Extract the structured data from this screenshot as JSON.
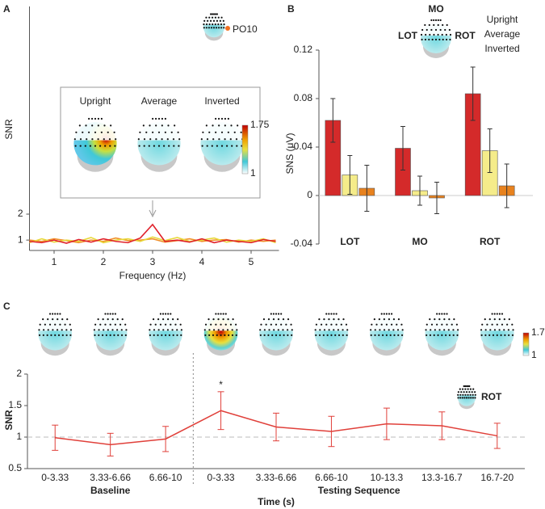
{
  "chart_data": [
    {
      "type": "line",
      "panel": "A",
      "y_label": "SNR",
      "x_label": "Frequency (Hz)",
      "electrode": "PO10",
      "x": [
        0.5,
        0.75,
        1,
        1.25,
        1.5,
        1.75,
        2,
        2.25,
        2.5,
        2.75,
        3,
        3.25,
        3.5,
        3.75,
        4,
        4.25,
        4.5,
        4.75,
        5,
        5.25,
        5.5
      ],
      "series": [
        {
          "name": "Upright",
          "color": "#e0202a",
          "values": [
            0.95,
            0.9,
            1.0,
            0.88,
            1.02,
            0.92,
            1.05,
            0.95,
            0.9,
            1.08,
            1.6,
            0.95,
            1.0,
            0.92,
            1.05,
            0.9,
            1.0,
            0.95,
            0.9,
            1.02,
            0.95
          ]
        },
        {
          "name": "Average",
          "color": "#e8d83a",
          "values": [
            0.9,
            1.05,
            0.92,
            1.0,
            0.95,
            1.1,
            0.9,
            1.0,
            1.05,
            0.95,
            1.12,
            0.98,
            1.1,
            0.95,
            1.0,
            1.08,
            0.92,
            1.0,
            0.95,
            1.05,
            0.9
          ]
        },
        {
          "name": "Inverted",
          "color": "#f0902a",
          "values": [
            1.0,
            0.95,
            1.05,
            0.98,
            0.9,
            1.0,
            0.95,
            1.08,
            0.98,
            1.0,
            1.05,
            0.92,
            0.98,
            1.05,
            0.95,
            1.0,
            1.02,
            0.92,
            1.0,
            0.95,
            1.0
          ]
        }
      ],
      "xlim": [
        0.5,
        5.5
      ],
      "xticks": [
        1,
        2,
        3,
        4,
        5
      ],
      "ylim": [
        0.6,
        10
      ],
      "yticks": [
        1,
        2
      ],
      "arrow_x": 3,
      "colorbar_ticks": [
        1,
        1.75
      ]
    },
    {
      "type": "bar",
      "panel": "B",
      "y_label": "SNS (μV)",
      "categories": [
        "LOT",
        "MO",
        "ROT"
      ],
      "category_colors": [
        "#29a8df",
        "#8b5a2b",
        "#2e8b2e"
      ],
      "series": [
        {
          "name": "Upright",
          "color": "#d42a2a",
          "values": [
            0.062,
            0.039,
            0.084
          ],
          "errors": [
            0.018,
            0.018,
            0.022
          ]
        },
        {
          "name": "Average",
          "color": "#f5ec8a",
          "values": [
            0.017,
            0.004,
            0.037
          ],
          "errors": [
            0.016,
            0.012,
            0.018
          ]
        },
        {
          "name": "Inverted",
          "color": "#e8821e",
          "values": [
            0.006,
            -0.002,
            0.008
          ],
          "errors": [
            0.019,
            0.013,
            0.018
          ]
        }
      ],
      "ylim": [
        -0.04,
        0.12
      ],
      "yticks": [
        -0.04,
        0,
        0.04,
        0.08,
        0.12
      ]
    },
    {
      "type": "errorline",
      "panel": "C",
      "y_label": "SNR",
      "x_label": "Time (s)",
      "color": "#e0403a",
      "categories": [
        "0-3.33",
        "3.33-6.66",
        "6.66-10",
        "0-3.33",
        "3.33-6.66",
        "6.66-10",
        "10-13.3",
        "13.3-16.7",
        "16.7-20"
      ],
      "values": [
        0.99,
        0.88,
        0.97,
        1.42,
        1.16,
        1.09,
        1.21,
        1.18,
        1.02
      ],
      "errors": [
        0.2,
        0.18,
        0.2,
        0.3,
        0.22,
        0.24,
        0.25,
        0.22,
        0.2
      ],
      "groups": [
        "Baseline",
        "Testing Sequence"
      ],
      "group_sizes": [
        3,
        6
      ],
      "group_colors": [
        "#888888",
        "#222222"
      ],
      "ylim": [
        0.5,
        2
      ],
      "yticks": [
        0.5,
        1,
        1.5,
        2
      ],
      "reference_line": 1,
      "annotations": [
        {
          "text": "*",
          "category": 3
        }
      ],
      "region_label": "ROT",
      "colorbar_ticks": [
        1,
        1.7
      ]
    }
  ]
}
